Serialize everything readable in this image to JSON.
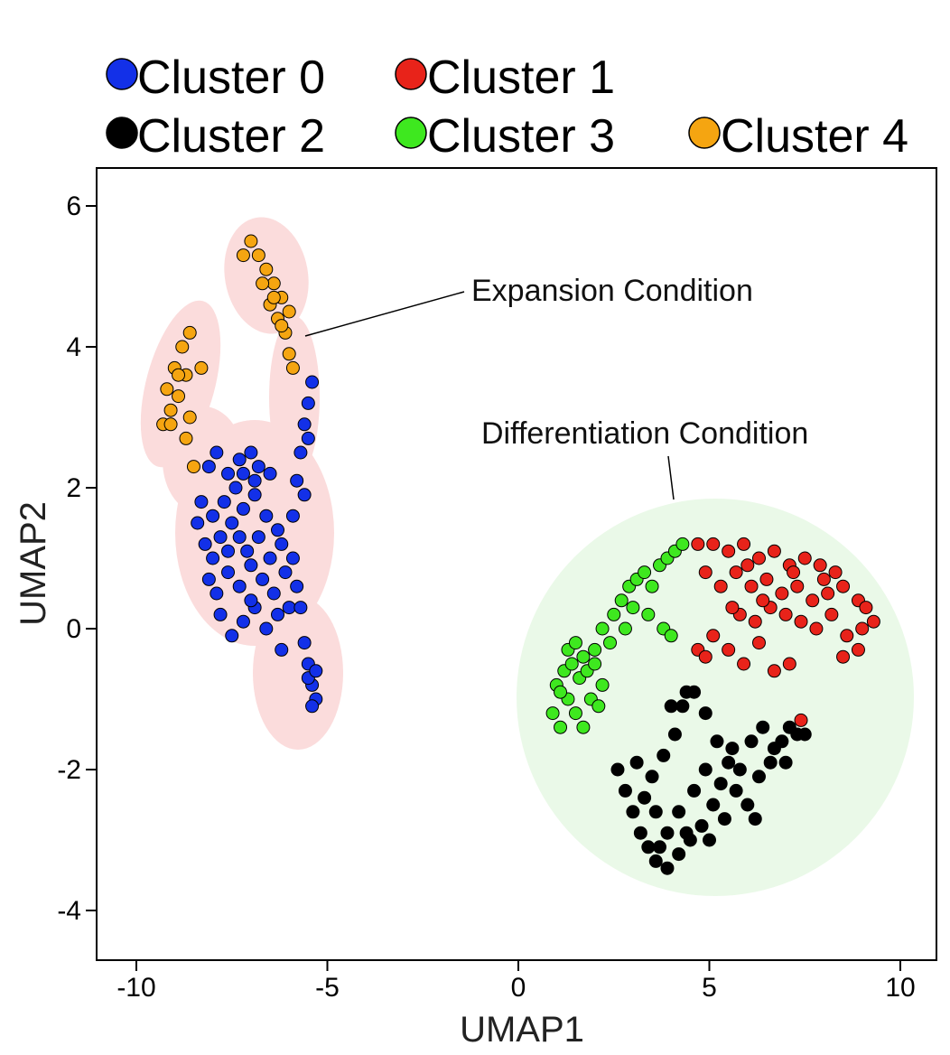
{
  "chart_data": {
    "type": "scatter",
    "xlabel": "UMAP1",
    "ylabel": "UMAP2",
    "xlim": [
      -10.5,
      10.5
    ],
    "ylim": [
      -4.8,
      6.0
    ],
    "x_ticks": [
      -10,
      -5,
      0,
      5,
      10
    ],
    "y_ticks": [
      6,
      4,
      2,
      0,
      -2,
      -4
    ],
    "x_tick_labels": [
      "-10",
      "-5",
      "0",
      "5",
      "10"
    ],
    "y_tick_labels": [
      "6",
      "4",
      "2",
      "0",
      "-2",
      "-4"
    ],
    "grid": false,
    "legend_position": "top",
    "series": [
      {
        "name": "Cluster 0",
        "color": "#1330e8",
        "points": [
          [
            -8.3,
            1.8
          ],
          [
            -8.1,
            2.3
          ],
          [
            -7.9,
            2.5
          ],
          [
            -7.6,
            2.2
          ],
          [
            -7.3,
            2.4
          ],
          [
            -7.0,
            2.5
          ],
          [
            -6.8,
            2.3
          ],
          [
            -6.5,
            2.2
          ],
          [
            -8.2,
            1.2
          ],
          [
            -8.0,
            1.0
          ],
          [
            -7.8,
            1.3
          ],
          [
            -7.5,
            1.5
          ],
          [
            -7.2,
            1.7
          ],
          [
            -6.9,
            1.9
          ],
          [
            -6.6,
            1.6
          ],
          [
            -6.3,
            1.4
          ],
          [
            -8.1,
            0.7
          ],
          [
            -7.9,
            0.5
          ],
          [
            -7.6,
            0.8
          ],
          [
            -7.3,
            0.6
          ],
          [
            -7.0,
            0.9
          ],
          [
            -6.7,
            0.7
          ],
          [
            -6.4,
            0.5
          ],
          [
            -6.1,
            0.8
          ],
          [
            -7.8,
            0.2
          ],
          [
            -7.5,
            -0.1
          ],
          [
            -7.2,
            0.1
          ],
          [
            -6.9,
            0.3
          ],
          [
            -6.6,
            0.0
          ],
          [
            -6.3,
            0.2
          ],
          [
            -6.0,
            0.3
          ],
          [
            -7.7,
            1.8
          ],
          [
            -7.4,
            2.0
          ],
          [
            -7.1,
            1.1
          ],
          [
            -6.8,
            1.3
          ],
          [
            -6.5,
            1.0
          ],
          [
            -6.2,
            1.2
          ],
          [
            -7.6,
            1.1
          ],
          [
            -7.3,
            1.3
          ],
          [
            -7.0,
            0.4
          ],
          [
            -5.9,
            1.6
          ],
          [
            -5.8,
            2.1
          ],
          [
            -5.6,
            1.9
          ],
          [
            -5.7,
            2.5
          ],
          [
            -5.6,
            2.9
          ],
          [
            -5.5,
            3.2
          ],
          [
            -5.4,
            3.5
          ],
          [
            -5.5,
            2.7
          ],
          [
            -5.8,
            0.6
          ],
          [
            -5.7,
            0.3
          ],
          [
            -5.6,
            -0.2
          ],
          [
            -5.5,
            -0.5
          ],
          [
            -5.4,
            -0.8
          ],
          [
            -5.3,
            -1.0
          ],
          [
            -5.5,
            -0.7
          ],
          [
            -5.3,
            -0.6
          ],
          [
            -5.4,
            -1.1
          ],
          [
            -8.4,
            1.5
          ],
          [
            -8.0,
            1.6
          ],
          [
            -6.2,
            -0.3
          ],
          [
            -5.9,
            1.0
          ],
          [
            -6.9,
            2.1
          ],
          [
            -7.2,
            2.2
          ]
        ]
      },
      {
        "name": "Cluster 1",
        "color": "#e8231a",
        "points": [
          [
            4.7,
            1.2
          ],
          [
            5.1,
            1.2
          ],
          [
            5.5,
            1.1
          ],
          [
            5.9,
            1.2
          ],
          [
            6.3,
            1.0
          ],
          [
            6.7,
            1.1
          ],
          [
            7.1,
            0.9
          ],
          [
            7.5,
            1.0
          ],
          [
            7.9,
            0.9
          ],
          [
            8.3,
            0.8
          ],
          [
            4.9,
            0.8
          ],
          [
            5.3,
            0.6
          ],
          [
            5.7,
            0.8
          ],
          [
            6.1,
            0.6
          ],
          [
            6.5,
            0.7
          ],
          [
            6.9,
            0.5
          ],
          [
            7.3,
            0.6
          ],
          [
            7.7,
            0.4
          ],
          [
            8.1,
            0.5
          ],
          [
            8.5,
            0.6
          ],
          [
            8.9,
            0.4
          ],
          [
            9.3,
            0.1
          ],
          [
            5.8,
            0.2
          ],
          [
            6.2,
            0.1
          ],
          [
            6.6,
            0.3
          ],
          [
            7.0,
            0.2
          ],
          [
            7.4,
            0.1
          ],
          [
            7.8,
            0.0
          ],
          [
            8.2,
            0.2
          ],
          [
            8.6,
            -0.1
          ],
          [
            9.0,
            0.0
          ],
          [
            4.7,
            -0.3
          ],
          [
            5.1,
            -0.1
          ],
          [
            5.5,
            -0.3
          ],
          [
            5.9,
            -0.5
          ],
          [
            6.3,
            -0.2
          ],
          [
            6.7,
            -0.6
          ],
          [
            7.1,
            -0.5
          ],
          [
            8.5,
            -0.4
          ],
          [
            8.9,
            -0.3
          ],
          [
            9.1,
            0.3
          ],
          [
            6.0,
            0.9
          ],
          [
            6.4,
            0.4
          ],
          [
            7.2,
            0.8
          ],
          [
            8.0,
            0.7
          ],
          [
            5.6,
            0.3
          ],
          [
            4.9,
            -0.4
          ],
          [
            7.4,
            -1.3
          ]
        ]
      },
      {
        "name": "Cluster 2",
        "color": "#000000",
        "points": [
          [
            2.6,
            -2.0
          ],
          [
            2.8,
            -2.3
          ],
          [
            3.0,
            -2.6
          ],
          [
            3.2,
            -2.9
          ],
          [
            3.4,
            -3.1
          ],
          [
            3.6,
            -3.3
          ],
          [
            3.9,
            -3.4
          ],
          [
            4.2,
            -3.2
          ],
          [
            4.5,
            -3.0
          ],
          [
            4.8,
            -2.8
          ],
          [
            5.1,
            -2.5
          ],
          [
            5.4,
            -2.7
          ],
          [
            5.7,
            -2.3
          ],
          [
            6.0,
            -2.5
          ],
          [
            6.3,
            -2.1
          ],
          [
            6.6,
            -1.9
          ],
          [
            6.9,
            -1.6
          ],
          [
            7.1,
            -1.4
          ],
          [
            7.3,
            -1.5
          ],
          [
            7.5,
            -1.5
          ],
          [
            4.6,
            -0.9
          ],
          [
            4.9,
            -1.2
          ],
          [
            5.2,
            -1.6
          ],
          [
            5.5,
            -1.9
          ],
          [
            5.8,
            -2.0
          ],
          [
            4.3,
            -1.1
          ],
          [
            4.1,
            -1.5
          ],
          [
            3.8,
            -1.8
          ],
          [
            3.5,
            -2.1
          ],
          [
            3.3,
            -2.4
          ],
          [
            3.1,
            -1.9
          ],
          [
            3.6,
            -2.6
          ],
          [
            3.9,
            -2.9
          ],
          [
            4.2,
            -2.6
          ],
          [
            4.6,
            -2.3
          ],
          [
            4.9,
            -2.0
          ],
          [
            5.3,
            -2.2
          ],
          [
            5.6,
            -1.7
          ],
          [
            6.1,
            -1.6
          ],
          [
            6.4,
            -1.4
          ],
          [
            6.7,
            -1.7
          ],
          [
            7.0,
            -1.9
          ],
          [
            4.4,
            -0.9
          ],
          [
            4.0,
            -1.1
          ],
          [
            5.0,
            -3.0
          ],
          [
            4.4,
            -2.9
          ],
          [
            3.7,
            -3.1
          ],
          [
            6.2,
            -2.7
          ]
        ]
      },
      {
        "name": "Cluster 3",
        "color": "#3ee81f",
        "points": [
          [
            0.9,
            -1.2
          ],
          [
            1.1,
            -1.4
          ],
          [
            1.3,
            -1.0
          ],
          [
            1.5,
            -1.2
          ],
          [
            1.7,
            -1.4
          ],
          [
            1.9,
            -1.0
          ],
          [
            2.1,
            -1.1
          ],
          [
            1.0,
            -0.8
          ],
          [
            1.2,
            -0.6
          ],
          [
            1.4,
            -0.5
          ],
          [
            1.6,
            -0.7
          ],
          [
            1.8,
            -0.6
          ],
          [
            2.0,
            -0.5
          ],
          [
            2.2,
            -0.8
          ],
          [
            1.3,
            -0.3
          ],
          [
            1.5,
            -0.2
          ],
          [
            1.7,
            -0.4
          ],
          [
            2.0,
            -0.3
          ],
          [
            2.2,
            0.0
          ],
          [
            2.5,
            0.2
          ],
          [
            2.7,
            0.4
          ],
          [
            2.9,
            0.6
          ],
          [
            3.1,
            0.7
          ],
          [
            3.3,
            0.8
          ],
          [
            3.5,
            0.6
          ],
          [
            3.7,
            0.9
          ],
          [
            3.9,
            1.0
          ],
          [
            4.1,
            1.1
          ],
          [
            4.3,
            1.2
          ],
          [
            3.0,
            0.3
          ],
          [
            3.4,
            0.2
          ],
          [
            3.8,
            0.0
          ],
          [
            4.0,
            -0.1
          ],
          [
            2.8,
            0.0
          ],
          [
            1.1,
            -0.9
          ],
          [
            2.4,
            -0.2
          ]
        ]
      },
      {
        "name": "Cluster 4",
        "color": "#f5a511",
        "points": [
          [
            -7.2,
            5.3
          ],
          [
            -7.0,
            5.5
          ],
          [
            -6.8,
            5.3
          ],
          [
            -6.6,
            5.1
          ],
          [
            -6.4,
            4.9
          ],
          [
            -6.2,
            4.7
          ],
          [
            -6.0,
            4.5
          ],
          [
            -6.3,
            4.4
          ],
          [
            -6.5,
            4.6
          ],
          [
            -6.7,
            4.9
          ],
          [
            -6.1,
            4.2
          ],
          [
            -6.0,
            3.9
          ],
          [
            -5.9,
            3.7
          ],
          [
            -6.2,
            4.3
          ],
          [
            -6.4,
            4.7
          ],
          [
            -8.6,
            4.2
          ],
          [
            -8.8,
            4.0
          ],
          [
            -9.0,
            3.7
          ],
          [
            -9.2,
            3.4
          ],
          [
            -9.1,
            3.1
          ],
          [
            -8.9,
            3.3
          ],
          [
            -8.7,
            3.6
          ],
          [
            -8.6,
            3.0
          ],
          [
            -8.3,
            3.7
          ],
          [
            -9.3,
            2.9
          ],
          [
            -8.7,
            2.7
          ],
          [
            -8.5,
            2.3
          ],
          [
            -8.9,
            3.6
          ],
          [
            -9.1,
            2.9
          ]
        ]
      }
    ],
    "regions": [
      {
        "name": "Expansion Condition",
        "color": "#fbdcdc"
      },
      {
        "name": "Differentiation Condition",
        "color": "#eaf9e8"
      }
    ],
    "annotations": [
      "Expansion Condition",
      "Differentiation Condition"
    ]
  }
}
